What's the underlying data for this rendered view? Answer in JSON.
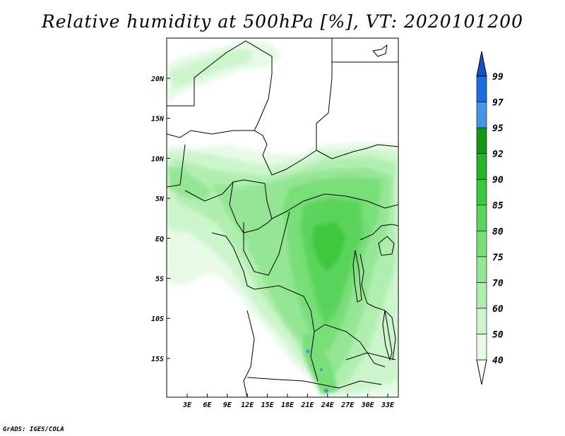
{
  "title": "Relative humidity at 500hPa [%], VT: 2020101200",
  "credit": "GrADS: IGES/COLA",
  "lat_labels": [
    "20N",
    "15N",
    "10N",
    "5N",
    "EQ",
    "5S",
    "10S",
    "15S"
  ],
  "lon_labels": [
    "3E",
    "6E",
    "9E",
    "12E",
    "15E",
    "18E",
    "21E",
    "24E",
    "27E",
    "30E",
    "33E"
  ],
  "colorbar": {
    "levels": [
      "40",
      "50",
      "60",
      "70",
      "75",
      "80",
      "85",
      "90",
      "92",
      "95",
      "97",
      "99"
    ],
    "colors": [
      "#ffffff",
      "#e6fae6",
      "#ccf5cc",
      "#b0eeb0",
      "#94e694",
      "#78de78",
      "#5ad45a",
      "#3cc83c",
      "#28b428",
      "#149614",
      "#4696e6",
      "#1e6ee1",
      "#1450c8"
    ]
  }
}
